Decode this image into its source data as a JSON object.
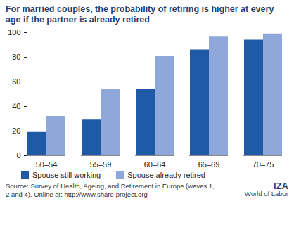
{
  "chart_data": {
    "type": "bar",
    "title": "For married couples, the probability of retiring is higher at every age if the partner is already retired",
    "categories": [
      "50–54",
      "55–59",
      "60–64",
      "65–69",
      "70–75"
    ],
    "series": [
      {
        "name": "Spouse still working",
        "color": "#1f5aa6",
        "values": [
          19,
          29,
          54,
          86,
          94
        ]
      },
      {
        "name": "Spouse already retired",
        "color": "#8ea8db",
        "values": [
          32,
          54,
          81,
          97,
          99
        ]
      }
    ],
    "ylim": [
      0,
      100
    ],
    "yticks": [
      0,
      20,
      40,
      60,
      80,
      100
    ],
    "grid": false,
    "legend": "bottom",
    "source": "Source: Survey of Health, Ageing, and Retirement in Europe (waves 1, 2 and 4). Online at: http://www.share-project.org",
    "annotations": [
      "IZA",
      "World of Labor"
    ]
  }
}
